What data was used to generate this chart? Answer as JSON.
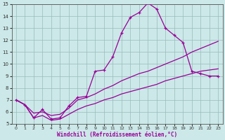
{
  "xlabel": "Windchill (Refroidissement éolien,°C)",
  "bg_color": "#cce8e8",
  "line_color": "#990099",
  "grid_color": "#99bbbb",
  "xlim": [
    -0.5,
    23.5
  ],
  "ylim": [
    5,
    15
  ],
  "xticks": [
    0,
    1,
    2,
    3,
    4,
    5,
    6,
    7,
    8,
    9,
    10,
    11,
    12,
    13,
    14,
    15,
    16,
    17,
    18,
    19,
    20,
    21,
    22,
    23
  ],
  "yticks": [
    5,
    6,
    7,
    8,
    9,
    10,
    11,
    12,
    13,
    14,
    15
  ],
  "curve1_x": [
    0,
    1,
    2,
    3,
    4,
    5,
    6,
    7,
    8,
    9,
    10,
    11,
    12,
    13,
    14,
    15,
    16,
    17,
    18,
    19,
    20,
    21,
    22,
    23
  ],
  "curve1_y": [
    7.0,
    6.6,
    5.5,
    6.2,
    5.4,
    5.5,
    6.5,
    7.2,
    7.3,
    9.4,
    9.5,
    10.6,
    12.6,
    13.9,
    14.3,
    15.1,
    14.6,
    13.0,
    12.4,
    11.8,
    9.4,
    9.2,
    9.0,
    9.0
  ],
  "curve2_x": [
    0,
    1,
    2,
    3,
    4,
    5,
    6,
    7,
    8,
    9,
    10,
    11,
    12,
    13,
    14,
    15,
    16,
    17,
    18,
    19,
    20,
    21,
    22,
    23
  ],
  "curve2_y": [
    7.0,
    6.6,
    5.9,
    6.0,
    5.7,
    5.8,
    6.3,
    7.0,
    7.2,
    7.5,
    7.9,
    8.2,
    8.6,
    8.9,
    9.2,
    9.4,
    9.7,
    10.0,
    10.3,
    10.6,
    11.0,
    11.3,
    11.6,
    11.9
  ],
  "curve3_x": [
    0,
    1,
    2,
    3,
    4,
    5,
    6,
    7,
    8,
    9,
    10,
    11,
    12,
    13,
    14,
    15,
    16,
    17,
    18,
    19,
    20,
    21,
    22,
    23
  ],
  "curve3_y": [
    7.0,
    6.6,
    5.5,
    5.7,
    5.3,
    5.4,
    5.8,
    6.2,
    6.5,
    6.7,
    7.0,
    7.2,
    7.5,
    7.7,
    7.9,
    8.1,
    8.3,
    8.6,
    8.8,
    9.0,
    9.2,
    9.4,
    9.5,
    9.6
  ]
}
